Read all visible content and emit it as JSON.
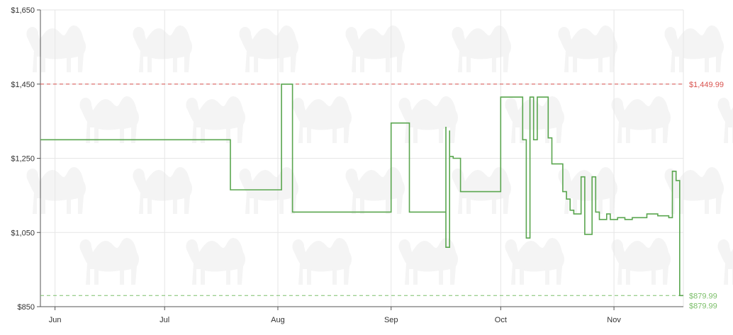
{
  "chart_data": {
    "type": "line",
    "step": true,
    "title": "",
    "xlabel": "",
    "ylabel": "",
    "ylim": [
      850,
      1650
    ],
    "xlim": [
      "2024-05-28",
      "2024-11-20"
    ],
    "grid": true,
    "y_ticks": [
      {
        "value": 850,
        "label": "$850"
      },
      {
        "value": 1050,
        "label": "$1,050"
      },
      {
        "value": 1250,
        "label": "$1,250"
      },
      {
        "value": 1450,
        "label": "$1,450"
      },
      {
        "value": 1650,
        "label": "$1,650"
      }
    ],
    "x_ticks": [
      {
        "date": "2024-06-01",
        "label": "Jun"
      },
      {
        "date": "2024-07-01",
        "label": "Jul"
      },
      {
        "date": "2024-08-01",
        "label": "Aug"
      },
      {
        "date": "2024-09-01",
        "label": "Sep"
      },
      {
        "date": "2024-10-01",
        "label": "Oct"
      },
      {
        "date": "2024-11-01",
        "label": "Nov"
      }
    ],
    "reference_lines": [
      {
        "value": 1449.99,
        "label": "$1,449.99",
        "color": "#d9534f"
      },
      {
        "value": 879.99,
        "label": "$879.99",
        "color": "#7cbf6a"
      }
    ],
    "current_price_label": "$879.99",
    "series_color": "#5aa64f",
    "series": [
      {
        "x": [
          "2024-05-28",
          "2024-07-19",
          "2024-08-02",
          "2024-08-05",
          "2024-09-01",
          "2024-09-06",
          "2024-09-16",
          "2024-09-16",
          "2024-09-17",
          "2024-09-17",
          "2024-09-18",
          "2024-09-20",
          "2024-09-24",
          "2024-10-01",
          "2024-10-07",
          "2024-10-08",
          "2024-10-09",
          "2024-10-10",
          "2024-10-11",
          "2024-10-13",
          "2024-10-14",
          "2024-10-15",
          "2024-10-18",
          "2024-10-19",
          "2024-10-20",
          "2024-10-21",
          "2024-10-23",
          "2024-10-24",
          "2024-10-26",
          "2024-10-27",
          "2024-10-28",
          "2024-10-30",
          "2024-10-31",
          "2024-11-02",
          "2024-11-04",
          "2024-11-06",
          "2024-11-08",
          "2024-11-10",
          "2024-11-13",
          "2024-11-16",
          "2024-11-17",
          "2024-11-18",
          "2024-11-19",
          "2024-11-20"
        ],
        "y": [
          1300,
          1165,
          1450,
          1105,
          1345,
          1105,
          1335,
          1010,
          1325,
          1255,
          1250,
          1160,
          1160,
          1415,
          1300,
          1035,
          1415,
          1300,
          1415,
          1415,
          1305,
          1235,
          1160,
          1140,
          1110,
          1100,
          1200,
          1045,
          1200,
          1105,
          1085,
          1100,
          1085,
          1090,
          1085,
          1090,
          1090,
          1100,
          1095,
          1090,
          1215,
          1190,
          880,
          880
        ]
      }
    ]
  }
}
